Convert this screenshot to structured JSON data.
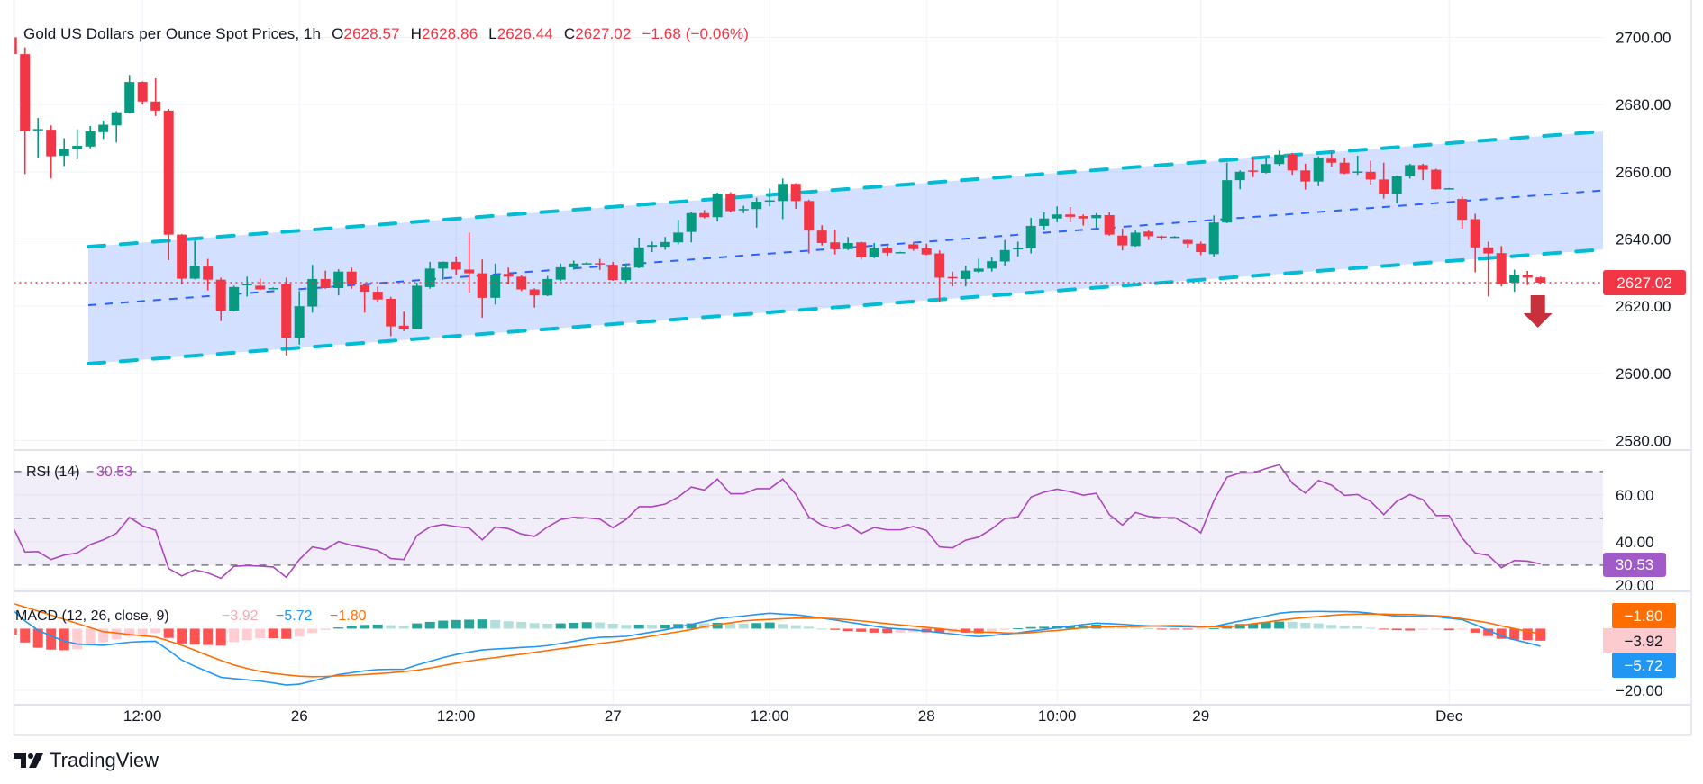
{
  "header": {
    "title": "Gold US Dollars per Ounce Spot Prices, 1h",
    "o_label": "O",
    "o": "2628.57",
    "h_label": "H",
    "h": "2628.86",
    "l_label": "L",
    "l": "2626.44",
    "c_label": "C",
    "c": "2627.02",
    "change": "−1.68 (−0.06%)"
  },
  "logo": {
    "text": "TradingView"
  },
  "colors": {
    "up": "#089981",
    "down": "#f23645",
    "channel_edge": "#00bcd4",
    "channel_mid": "#2962ff",
    "channel_fill": "rgba(41,98,255,0.2)",
    "rsi": "#ab47bc",
    "macd": "#2196f3",
    "signal": "#ff6d00",
    "hist_up_strong": "#26a69a",
    "hist_up_weak": "#b2dfdb",
    "hist_down_strong": "#ff5252",
    "hist_down_weak": "#ffcdd2",
    "arrow": "#c8303c",
    "grid": "#f0f3fa"
  },
  "time_axis": [
    {
      "label": "12:00",
      "bar": 10
    },
    {
      "label": "26",
      "bar": 22
    },
    {
      "label": "12:00",
      "bar": 34
    },
    {
      "label": "27",
      "bar": 46
    },
    {
      "label": "12:00",
      "bar": 58
    },
    {
      "label": "28",
      "bar": 70
    },
    {
      "label": "10:00",
      "bar": 80
    },
    {
      "label": "29",
      "bar": 91
    },
    {
      "label": "Dec",
      "bar": 110
    }
  ],
  "chart_data": [
    {
      "type": "candlestick",
      "title": "Gold US Dollars per Ounce Spot Prices, 1h",
      "ylim": [
        2577.2,
        2711.1
      ],
      "y_ticks": [
        "2700.00",
        "2680.00",
        "2660.00",
        "2640.00",
        "2620.00",
        "2600.00",
        "2580.00"
      ],
      "grid": true,
      "last_price": "2627.02",
      "annotation": "down-arrow",
      "channel": {
        "start_bar": 5.85,
        "end_bar": 121.8,
        "upper": [
          2637.7,
          2672.0
        ],
        "lower": [
          2602.9,
          2636.9
        ]
      },
      "ohlc": [
        [
          2700,
          2702,
          2694,
          2695
        ],
        [
          2695,
          2697,
          2659.3,
          2672
        ],
        [
          2672.3,
          2676,
          2664,
          2672.7
        ],
        [
          2672.5,
          2673.8,
          2658,
          2664.6
        ],
        [
          2664.8,
          2670,
          2661.7,
          2666.8
        ],
        [
          2666.7,
          2672.6,
          2663.8,
          2667.7
        ],
        [
          2667.5,
          2673.6,
          2667,
          2672
        ],
        [
          2671.8,
          2675.2,
          2669.8,
          2674
        ],
        [
          2673.8,
          2678,
          2668.7,
          2677.7
        ],
        [
          2677.5,
          2688.8,
          2677.3,
          2686.7
        ],
        [
          2686.7,
          2686.9,
          2680,
          2680.9
        ],
        [
          2680.9,
          2687.8,
          2676.6,
          2678.2
        ],
        [
          2678.2,
          2678.7,
          2633.7,
          2641.3
        ],
        [
          2641.3,
          2641.5,
          2626.5,
          2628.2
        ],
        [
          2628.2,
          2639.5,
          2628,
          2632.1
        ],
        [
          2631.8,
          2634.1,
          2624.7,
          2627.9
        ],
        [
          2627.9,
          2628.5,
          2615.6,
          2618.7
        ],
        [
          2618.7,
          2626.1,
          2618.4,
          2625.7
        ],
        [
          2626.2,
          2628.8,
          2622.9,
          2626.6
        ],
        [
          2626.1,
          2628.2,
          2624.8,
          2625
        ],
        [
          2625.2,
          2625.6,
          2625,
          2625.4
        ],
        [
          2626.5,
          2628.5,
          2605.3,
          2610.6
        ],
        [
          2610.6,
          2624.5,
          2608.6,
          2620
        ],
        [
          2619.9,
          2632.3,
          2618.1,
          2628.1
        ],
        [
          2628.1,
          2630.6,
          2625.2,
          2625.4
        ],
        [
          2625.4,
          2631,
          2623.2,
          2630.3
        ],
        [
          2630.3,
          2631.5,
          2625.2,
          2626.5
        ],
        [
          2626.3,
          2626.5,
          2618.1,
          2624.3
        ],
        [
          2624.3,
          2625.8,
          2621.1,
          2622
        ],
        [
          2622.2,
          2622.8,
          2611.1,
          2614
        ],
        [
          2614.2,
          2618.4,
          2612.6,
          2613.3
        ],
        [
          2613.3,
          2627,
          2613.1,
          2626.1
        ],
        [
          2625.7,
          2633.2,
          2625.2,
          2631.2
        ],
        [
          2631.2,
          2633.3,
          2627.9,
          2633.2
        ],
        [
          2633.2,
          2634.8,
          2629.4,
          2630.9
        ],
        [
          2630.9,
          2641.9,
          2624,
          2629.8
        ],
        [
          2629.8,
          2633.9,
          2616.6,
          2622.5
        ],
        [
          2622.5,
          2632.7,
          2620.5,
          2629.4
        ],
        [
          2629.6,
          2631.5,
          2626.5,
          2628.8
        ],
        [
          2628.8,
          2629.2,
          2624.5,
          2625
        ],
        [
          2625,
          2625.3,
          2619.6,
          2623.2
        ],
        [
          2623.2,
          2629,
          2623,
          2628.1
        ],
        [
          2627.9,
          2632.7,
          2627.5,
          2631.6
        ],
        [
          2631.6,
          2633.6,
          2630.9,
          2632.7
        ],
        [
          2632.7,
          2633.1,
          2632.6,
          2632.8
        ],
        [
          2632.8,
          2634.1,
          2630.8,
          2632.5
        ],
        [
          2632.3,
          2633.2,
          2627.6,
          2627.8
        ],
        [
          2627.8,
          2632.7,
          2627.2,
          2631.5
        ],
        [
          2631.5,
          2640.4,
          2631.3,
          2637.5
        ],
        [
          2637.7,
          2639.2,
          2636.1,
          2638.2
        ],
        [
          2637.7,
          2640.6,
          2636.8,
          2639.1
        ],
        [
          2639,
          2645.7,
          2638.4,
          2641.9
        ],
        [
          2642.1,
          2647.9,
          2639,
          2647.7
        ],
        [
          2647.7,
          2648.6,
          2646.1,
          2646.5
        ],
        [
          2646.5,
          2653.8,
          2645.2,
          2653.5
        ],
        [
          2653.5,
          2653.9,
          2647.9,
          2648.3
        ],
        [
          2648.6,
          2649.9,
          2647.7,
          2648.9
        ],
        [
          2648.9,
          2652.3,
          2643.4,
          2651.1
        ],
        [
          2651.2,
          2655,
          2649.7,
          2651.5
        ],
        [
          2651.3,
          2658,
          2645.9,
          2656.4
        ],
        [
          2656.4,
          2656.6,
          2649,
          2651.3
        ],
        [
          2651.3,
          2651.7,
          2635.7,
          2642.5
        ],
        [
          2642.5,
          2644.1,
          2638.1,
          2638.8
        ],
        [
          2639,
          2642.8,
          2635.4,
          2637
        ],
        [
          2637,
          2640.6,
          2636.7,
          2638.8
        ],
        [
          2639,
          2639.2,
          2633.9,
          2634.5
        ],
        [
          2634.6,
          2638.8,
          2634.3,
          2637.2
        ],
        [
          2637.2,
          2637.9,
          2635,
          2635.9
        ],
        [
          2636.1,
          2636.2,
          2636,
          2636.1
        ],
        [
          2638.4,
          2638.9,
          2636.5,
          2637
        ],
        [
          2637.2,
          2638.6,
          2635.2,
          2635.4
        ],
        [
          2635.7,
          2636.6,
          2621.1,
          2628.5
        ],
        [
          2628.7,
          2630.3,
          2625.9,
          2628.3
        ],
        [
          2628.1,
          2632.1,
          2625.9,
          2630.6
        ],
        [
          2630.3,
          2634.1,
          2629.9,
          2631.2
        ],
        [
          2631.2,
          2634.5,
          2630.3,
          2633.4
        ],
        [
          2633.3,
          2639.7,
          2632.1,
          2636.7
        ],
        [
          2637.2,
          2639.2,
          2634.8,
          2637.3
        ],
        [
          2637.2,
          2646.3,
          2635.7,
          2643.9
        ],
        [
          2643.9,
          2647.9,
          2642.8,
          2646.1
        ],
        [
          2646.1,
          2649.7,
          2645,
          2647.3
        ],
        [
          2647.3,
          2649.5,
          2645,
          2646.6
        ],
        [
          2646.8,
          2647.3,
          2644,
          2646.1
        ],
        [
          2646.2,
          2647.7,
          2643,
          2647.1
        ],
        [
          2647.1,
          2647.9,
          2641,
          2641.3
        ],
        [
          2641,
          2643.1,
          2636.6,
          2638.1
        ],
        [
          2637.9,
          2642.5,
          2637.7,
          2641.9
        ],
        [
          2642.2,
          2642.5,
          2639.7,
          2640.8
        ],
        [
          2640.8,
          2641,
          2639.7,
          2640.6
        ],
        [
          2640.7,
          2640.9,
          2640.5,
          2640.7
        ],
        [
          2639.7,
          2640,
          2637.3,
          2638.6
        ],
        [
          2638.6,
          2639.2,
          2635.2,
          2636.1
        ],
        [
          2635.5,
          2647,
          2634.8,
          2644.9
        ],
        [
          2644.9,
          2662.7,
          2644.7,
          2657.5
        ],
        [
          2657.5,
          2660.4,
          2654.8,
          2660
        ],
        [
          2660.4,
          2664.2,
          2658.4,
          2660
        ],
        [
          2659.7,
          2663.9,
          2659.5,
          2662.3
        ],
        [
          2662.3,
          2666.3,
          2661.8,
          2665.1
        ],
        [
          2665.1,
          2665.6,
          2659.1,
          2660.4
        ],
        [
          2660.4,
          2662.4,
          2654.7,
          2657.1
        ],
        [
          2657.1,
          2664.6,
          2655.7,
          2664.2
        ],
        [
          2663.9,
          2665.7,
          2661.5,
          2662.7
        ],
        [
          2662.7,
          2664.2,
          2659.3,
          2659.5
        ],
        [
          2659.9,
          2664.8,
          2659.1,
          2660.1
        ],
        [
          2660,
          2663.3,
          2656.2,
          2657.7
        ],
        [
          2657.7,
          2662.7,
          2652,
          2653.3
        ],
        [
          2653.3,
          2658.9,
          2650.6,
          2658.7
        ],
        [
          2658.7,
          2662.4,
          2658,
          2662
        ],
        [
          2662,
          2662.4,
          2657.5,
          2660.6
        ],
        [
          2660.6,
          2660.9,
          2654.7,
          2654.8
        ],
        [
          2655,
          2655.2,
          2654.9,
          2655.1
        ],
        [
          2651.9,
          2652.6,
          2643.1,
          2645.7
        ],
        [
          2645.9,
          2647.5,
          2630.1,
          2637.5
        ],
        [
          2637.5,
          2639.2,
          2622.9,
          2635.7
        ],
        [
          2635.8,
          2637.9,
          2625.9,
          2626.6
        ],
        [
          2627,
          2630.9,
          2624.3,
          2629.4
        ],
        [
          2629.4,
          2630.5,
          2626.3,
          2628.5
        ],
        [
          2628.57,
          2628.86,
          2626.44,
          2627.02
        ]
      ]
    },
    {
      "type": "line",
      "title": "RSI (14)",
      "value_label": "30.53",
      "ylim": [
        18.8,
        79.2
      ],
      "y_ticks": [
        "60.00",
        "40.00",
        "20.00"
      ],
      "bands": [
        70,
        50,
        30
      ],
      "values": [
        47.2,
        35.6,
        35.8,
        32.4,
        34.3,
        35.2,
        38.8,
        40.8,
        43.6,
        50.4,
        46.8,
        44.9,
        28.6,
        25.4,
        28,
        26.7,
        24.4,
        29.5,
        29.8,
        29.6,
        29.2,
        24.8,
        32.4,
        37.8,
        36.7,
        40.1,
        38.5,
        37.4,
        36.3,
        32.8,
        32.4,
        42.7,
        46.3,
        47.4,
        46.5,
        45.9,
        40.8,
        46.3,
        45.6,
        43.3,
        42.3,
        46.3,
        49.5,
        50.4,
        50.2,
        49.7,
        46,
        49.5,
        55,
        55,
        56.1,
        59.1,
        63.4,
        62.1,
        66.8,
        60.5,
        60.5,
        62.7,
        62.7,
        66.8,
        60.2,
        50.6,
        47.1,
        45.5,
        47.4,
        43.5,
        46.1,
        45.1,
        45.1,
        46.5,
        44.8,
        37.8,
        37.4,
        40.7,
        42,
        45.5,
        49.9,
        50.6,
        59.1,
        61.2,
        62.5,
        61.4,
        59.9,
        60.7,
        51.6,
        47.1,
        52.5,
        50.8,
        50.3,
        50.3,
        47.4,
        43.8,
        57.6,
        67.6,
        69.4,
        69.4,
        71.3,
        72.9,
        65,
        60.8,
        66.2,
        64.2,
        59.8,
        60.2,
        57.2,
        51.6,
        57.3,
        60.2,
        58,
        51.2,
        51.2,
        41.6,
        35.2,
        34.2,
        28.9,
        32,
        31.7,
        30.53
      ]
    },
    {
      "type": "line",
      "title": "MACD (12, 26, close, 9)",
      "hist_label": "−3.92",
      "macd_label": "−5.72",
      "signal_label": "−1.80",
      "ylim": [
        -24.7,
        12.1
      ],
      "y_ticks": [
        "−20.00"
      ],
      "macd": [
        6.3,
        2.5,
        -0.5,
        -2.4,
        -4.0,
        -5.0,
        -5.2,
        -5.4,
        -4.9,
        -4.4,
        -4.2,
        -4.1,
        -7.0,
        -10.2,
        -12.2,
        -14.0,
        -15.8,
        -16.2,
        -16.6,
        -17.0,
        -17.6,
        -18.3,
        -18.0,
        -17.0,
        -15.9,
        -14.9,
        -14.3,
        -13.7,
        -13.3,
        -13.2,
        -13.2,
        -11.8,
        -10.6,
        -9.4,
        -8.4,
        -7.6,
        -6.9,
        -6.6,
        -6.4,
        -6.1,
        -5.9,
        -5.5,
        -4.8,
        -4.1,
        -3.3,
        -2.8,
        -2.7,
        -2.5,
        -1.8,
        -1.1,
        -0.4,
        0.5,
        1.4,
        2.3,
        3.2,
        3.7,
        4.1,
        4.6,
        5.0,
        4.7,
        4.5,
        4.0,
        3.4,
        2.8,
        2.1,
        1.5,
        0.8,
        0.2,
        -0.1,
        -0.4,
        -0.8,
        -1.3,
        -1.7,
        -2.2,
        -2.6,
        -2.2,
        -1.8,
        -1.4,
        -0.8,
        -0.3,
        0.3,
        0.8,
        1.3,
        1.8,
        1.6,
        1.4,
        1.1,
        0.9,
        0.8,
        0.7,
        0.6,
        0.5,
        0.7,
        1.6,
        2.5,
        3.2,
        4.1,
        5.0,
        5.4,
        5.5,
        5.6,
        5.5,
        5.5,
        5.4,
        5.0,
        4.5,
        4.1,
        4.0,
        4.0,
        3.9,
        3.4,
        2.9,
        1.3,
        -0.5,
        -2.4,
        -3.6,
        -4.6,
        -5.72
      ],
      "signal": [
        8.3,
        7.0,
        5.7,
        4.4,
        3.0,
        1.7,
        0.3,
        -1.0,
        -1.4,
        -1.9,
        -2.3,
        -2.7,
        -4.0,
        -5.4,
        -7.0,
        -8.7,
        -10.3,
        -11.8,
        -12.9,
        -13.9,
        -14.5,
        -15.0,
        -15.4,
        -15.6,
        -15.5,
        -15.3,
        -15.1,
        -14.9,
        -14.6,
        -14.3,
        -13.9,
        -13.5,
        -12.8,
        -12.0,
        -11.2,
        -10.5,
        -9.9,
        -9.4,
        -8.8,
        -8.3,
        -7.7,
        -7.1,
        -6.5,
        -6.0,
        -5.4,
        -4.8,
        -4.3,
        -3.7,
        -3.1,
        -2.4,
        -1.7,
        -1.0,
        -0.3,
        0.6,
        1.3,
        1.9,
        2.5,
        2.8,
        3.0,
        3.2,
        3.4,
        3.4,
        3.4,
        3.2,
        2.9,
        2.5,
        2.1,
        1.6,
        1.2,
        0.8,
        0.4,
        0.0,
        -0.5,
        -0.9,
        -1.1,
        -1.2,
        -1.4,
        -1.5,
        -1.3,
        -0.9,
        -0.6,
        -0.2,
        0.3,
        0.5,
        0.6,
        0.7,
        0.7,
        0.8,
        0.9,
        1.0,
        0.9,
        0.7,
        0.6,
        0.5,
        1.0,
        1.6,
        2.1,
        2.7,
        3.2,
        3.6,
        3.9,
        4.3,
        4.6,
        4.7,
        4.7,
        4.7,
        4.6,
        4.6,
        4.4,
        4.2,
        3.9,
        3.2,
        2.6,
        1.9,
        0.9,
        0.0,
        -0.9,
        -1.8
      ]
    }
  ]
}
